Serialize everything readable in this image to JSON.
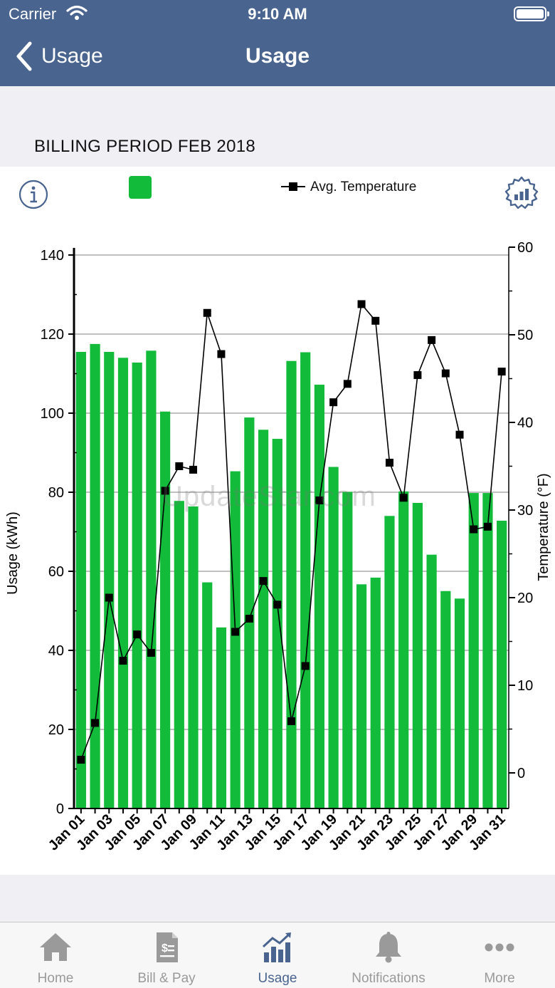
{
  "status_bar": {
    "carrier": "Carrier",
    "time": "9:10 AM"
  },
  "nav": {
    "back_label": "Usage",
    "title": "Usage"
  },
  "section_header": "BILLING PERIOD FEB 2018",
  "legend": {
    "temperature_label": "Avg. Temperature",
    "usage_color": "#12bb3a"
  },
  "watermark": "UpdateStar.com",
  "tabs": [
    {
      "label": "Home",
      "icon": "home-icon",
      "active": false
    },
    {
      "label": "Bill & Pay",
      "icon": "bill-icon",
      "active": false
    },
    {
      "label": "Usage",
      "icon": "usage-icon",
      "active": true
    },
    {
      "label": "Notifications",
      "icon": "bell-icon",
      "active": false
    },
    {
      "label": "More",
      "icon": "more-icon",
      "active": false
    }
  ],
  "colors": {
    "nav_bar": "#4a6490",
    "bar": "#12bb3a",
    "line": "#000000",
    "tab_active": "#4a6490",
    "tab_inactive": "#9a9a9a"
  },
  "chart_data": {
    "type": "bar",
    "categories": [
      "Jan 01",
      "Jan 02",
      "Jan 03",
      "Jan 04",
      "Jan 05",
      "Jan 06",
      "Jan 07",
      "Jan 08",
      "Jan 09",
      "Jan 10",
      "Jan 11",
      "Jan 12",
      "Jan 13",
      "Jan 14",
      "Jan 15",
      "Jan 16",
      "Jan 17",
      "Jan 18",
      "Jan 19",
      "Jan 20",
      "Jan 21",
      "Jan 22",
      "Jan 23",
      "Jan 24",
      "Jan 25",
      "Jan 26",
      "Jan 27",
      "Jan 28",
      "Jan 29",
      "Jan 30",
      "Jan 31"
    ],
    "tick_labels": [
      "Jan 01",
      "Jan 03",
      "Jan 05",
      "Jan 07",
      "Jan 09",
      "Jan 11",
      "Jan 13",
      "Jan 15",
      "Jan 17",
      "Jan 19",
      "Jan 21",
      "Jan 23",
      "Jan 25",
      "Jan 27",
      "Jan 29",
      "Jan 31"
    ],
    "series": [
      {
        "type": "bar",
        "axis": "left",
        "values": [
          115.5,
          117.5,
          115.5,
          114,
          112.8,
          115.8,
          100.4,
          77.8,
          76.4,
          57.2,
          45.8,
          85.3,
          98.9,
          95.8,
          93.5,
          113.2,
          115.4,
          107.2,
          86.4,
          80.1,
          56.7,
          58.4,
          74,
          80.2,
          77.3,
          64.2,
          55,
          53.1,
          79.8,
          79.8,
          72.8
        ]
      },
      {
        "name": "Avg. Temperature",
        "type": "line",
        "axis": "right",
        "values": [
          1.5,
          5.7,
          20,
          12.8,
          15.8,
          13.7,
          32.2,
          35,
          34.6,
          52.5,
          47.8,
          16.1,
          17.6,
          21.9,
          19.2,
          5.9,
          12.2,
          31.1,
          42.3,
          44.4,
          53.5,
          51.6,
          35.4,
          31.4,
          45.4,
          49.4,
          45.6,
          38.6,
          27.8,
          28.1,
          45.8
        ]
      }
    ],
    "ylabel": "Usage (kWh)",
    "y2label": "Temperature (°F)",
    "ylim": [
      0,
      140
    ],
    "y_ticks": [
      0,
      20,
      40,
      60,
      80,
      100,
      120,
      140
    ],
    "y2lim": [
      -4,
      60
    ],
    "y2_ticks": [
      0,
      10,
      20,
      30,
      40,
      50,
      60
    ],
    "grid": true,
    "legend_position": "top"
  }
}
